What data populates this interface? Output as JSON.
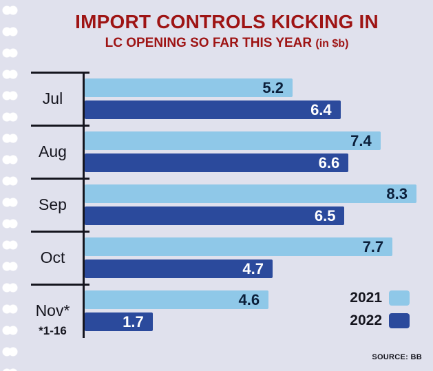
{
  "colors": {
    "background": "#e0e1ed",
    "title": "#9e1414",
    "bar_2021": "#8fc8e8",
    "bar_2022": "#2b4a9c"
  },
  "header": {
    "title": "IMPORT CONTROLS KICKING IN",
    "subtitle": "LC OPENING SO FAR THIS YEAR",
    "unit": "(in $b)"
  },
  "chart_data": {
    "type": "bar",
    "orientation": "horizontal",
    "title": "IMPORT CONTROLS KICKING IN",
    "subtitle": "LC OPENING SO FAR THIS YEAR (in $b)",
    "categories": [
      "Jul",
      "Aug",
      "Sep",
      "Oct",
      "Nov*"
    ],
    "series": [
      {
        "name": "2021",
        "color": "#8fc8e8",
        "values": [
          5.2,
          7.4,
          8.3,
          7.7,
          4.6
        ]
      },
      {
        "name": "2022",
        "color": "#2b4a9c",
        "values": [
          6.4,
          6.6,
          6.5,
          4.7,
          1.7
        ]
      }
    ],
    "xmax": 8.3,
    "note": "*1-16",
    "legend_position": "bottom-right",
    "grid": false
  },
  "footer": {
    "source_label": "SOURCE:",
    "source_value": "BB"
  }
}
